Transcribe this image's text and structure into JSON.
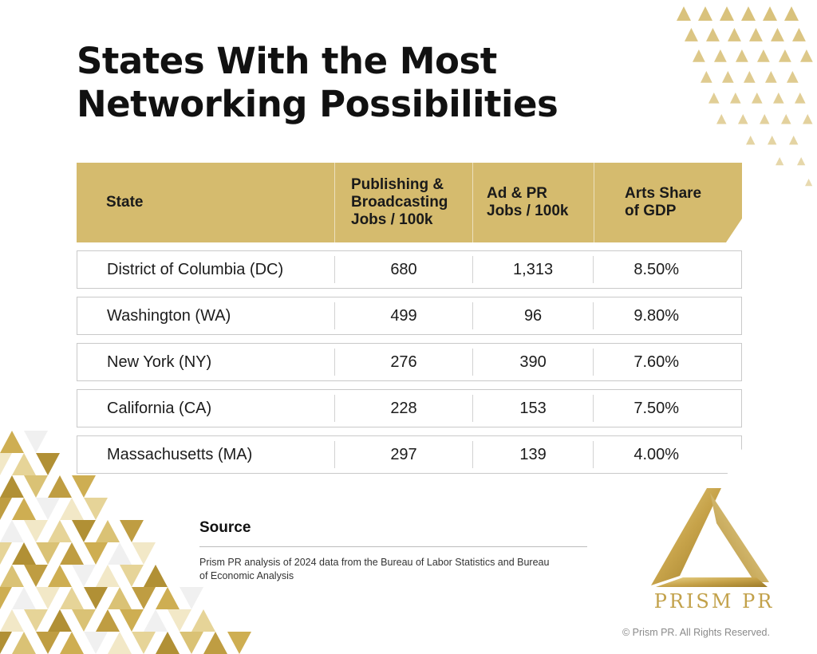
{
  "title_line1": "States With the Most",
  "title_line2": "Networking Possibilities",
  "table": {
    "headers": [
      "State",
      "Publishing & Broadcasting Jobs / 100k",
      "Ad & PR Jobs / 100k",
      "Arts Share of GDP"
    ],
    "header_lines": [
      [
        "State"
      ],
      [
        "Publishing &",
        "Broadcasting",
        "Jobs / 100k"
      ],
      [
        "Ad & PR",
        "Jobs / 100k"
      ],
      [
        "Arts Share",
        "of GDP"
      ]
    ],
    "rows": [
      {
        "state": "District of Columbia (DC)",
        "publishing": "680",
        "adpr": "1,313",
        "arts": "8.50%"
      },
      {
        "state": "Washington (WA)",
        "publishing": "499",
        "adpr": "96",
        "arts": "9.80%"
      },
      {
        "state": "New York (NY)",
        "publishing": "276",
        "adpr": "390",
        "arts": "7.60%"
      },
      {
        "state": "California (CA)",
        "publishing": "228",
        "adpr": "153",
        "arts": "7.50%"
      },
      {
        "state": "Massachusetts (MA)",
        "publishing": "297",
        "adpr": "139",
        "arts": "4.00%"
      }
    ]
  },
  "source": {
    "heading": "Source",
    "text": "Prism PR analysis of 2024 data from the Bureau of Labor Statistics and Bureau of Economic Analysis"
  },
  "logo": {
    "icon": "prism-triangle-logo-icon",
    "wordmark": "PRISM PR"
  },
  "copyright": "© Prism PR. All Rights Reserved.",
  "colors": {
    "accent_gold": "#d5bb6e",
    "logo_gold": "#c2a14a",
    "title_text": "#111111",
    "border_gray": "#c9c9c9"
  }
}
